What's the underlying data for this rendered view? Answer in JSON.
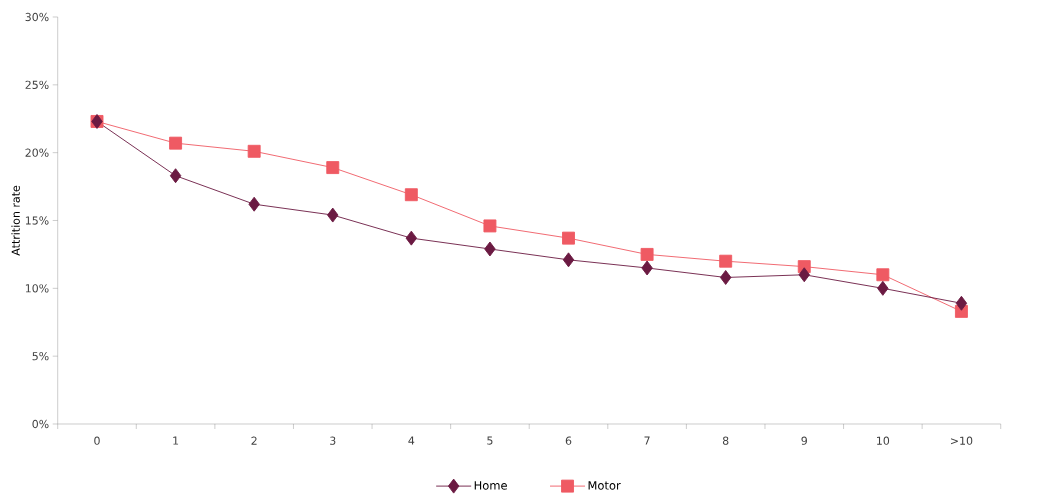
{
  "chart_data": {
    "type": "line",
    "ylabel": "Attrition rate",
    "categories": [
      "0",
      "1",
      "2",
      "3",
      "4",
      "5",
      "6",
      "7",
      "8",
      "9",
      "10",
      ">10"
    ],
    "series": [
      {
        "name": "Home",
        "color": "#6b1a42",
        "marker": "diamond",
        "values": [
          22.3,
          18.3,
          16.2,
          15.4,
          13.7,
          12.9,
          12.1,
          11.5,
          10.8,
          11.0,
          10.0,
          8.9
        ]
      },
      {
        "name": "Motor",
        "color": "#ef5a63",
        "marker": "square",
        "values": [
          22.3,
          20.7,
          20.1,
          18.9,
          16.9,
          14.6,
          13.7,
          12.5,
          12.0,
          11.6,
          11.0,
          8.3
        ]
      }
    ],
    "ylim": [
      0,
      30
    ],
    "yticks": [
      {
        "value": 0,
        "label": "0%"
      },
      {
        "value": 5,
        "label": "5%"
      },
      {
        "value": 10,
        "label": "10%"
      },
      {
        "value": 15,
        "label": "15%"
      },
      {
        "value": 20,
        "label": "20%"
      },
      {
        "value": 25,
        "label": "25%"
      },
      {
        "value": 30,
        "label": "30%"
      }
    ],
    "legend": "bottom",
    "grid": false,
    "line_style": "solid"
  }
}
